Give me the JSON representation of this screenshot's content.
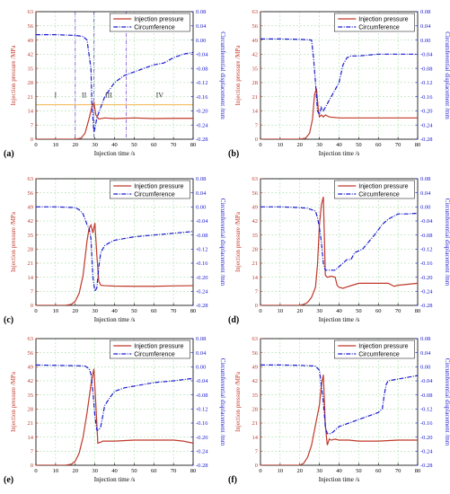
{
  "colors": {
    "pressure": "#c0392b",
    "circumference": "#1a1acd",
    "grid": "#9bd89b",
    "stage_line_pressure": "#f0a830",
    "stage_divider": "#7a4fd0",
    "left_axis": "#c0392b",
    "right_axis": "#1a1acd"
  },
  "chart_data": [
    {
      "label": "(a)",
      "type": "line",
      "xlabel": "Injection time /s",
      "ylabel": "Injection pressure /MPa",
      "y2label": "Circumferential displacement /mm",
      "xlim": [
        0,
        80
      ],
      "ylim": [
        0,
        63
      ],
      "y2lim": [
        -0.28,
        0.08
      ],
      "xticks": [
        "0",
        "10",
        "20",
        "30",
        "40",
        "50",
        "60",
        "70",
        "80"
      ],
      "yticks": [
        "0",
        "7",
        "14",
        "21",
        "28",
        "35",
        "42",
        "49",
        "56",
        "63"
      ],
      "y2ticks": [
        "-0.28",
        "-0.24",
        "-0.20",
        "-0.16",
        "-0.12",
        "-0.08",
        "-0.04",
        "0.00",
        "0.04",
        "0.08"
      ],
      "legend": [
        "Injection pressure",
        "Circumference"
      ],
      "legend_position": "top-right",
      "grid": true,
      "stage_dividers": [
        20,
        29.5,
        46
      ],
      "stage_level": 17,
      "stages": [
        {
          "label": "I",
          "x": 10
        },
        {
          "label": "II",
          "x": 24.5
        },
        {
          "label": "III",
          "x": 37
        },
        {
          "label": "IV",
          "x": 63
        }
      ],
      "series": [
        {
          "name": "Injection pressure",
          "x": [
            0,
            20,
            23,
            25,
            27,
            28.5,
            29.5,
            30.5,
            32,
            35,
            40,
            50,
            60,
            70,
            80
          ],
          "y": [
            0,
            0,
            0.5,
            3,
            10,
            16,
            18,
            12,
            10,
            10.5,
            10.2,
            10.5,
            10.2,
            10.3,
            10.3
          ]
        },
        {
          "name": "Circumference",
          "x": [
            0,
            10,
            20,
            24,
            26,
            28,
            28.5,
            29.5,
            30,
            31,
            33,
            35,
            40,
            45,
            50,
            55,
            60,
            65,
            70,
            75,
            80
          ],
          "y": [
            0.015,
            0.015,
            0.013,
            0.01,
            0.0,
            -0.08,
            -0.18,
            -0.26,
            -0.25,
            -0.22,
            -0.19,
            -0.16,
            -0.12,
            -0.1,
            -0.09,
            -0.08,
            -0.07,
            -0.065,
            -0.05,
            -0.04,
            -0.035
          ]
        }
      ]
    },
    {
      "label": "(b)",
      "type": "line",
      "xlabel": "Injection time /s",
      "ylabel": "Injection pressure /MPa",
      "y2label": "Circumferential displacement /mm",
      "xlim": [
        0,
        80
      ],
      "ylim": [
        0,
        63
      ],
      "y2lim": [
        -0.28,
        0.08
      ],
      "xticks": [
        "0",
        "10",
        "20",
        "30",
        "40",
        "50",
        "60",
        "70",
        "80"
      ],
      "yticks": [
        "0",
        "7",
        "14",
        "21",
        "28",
        "35",
        "42",
        "49",
        "56",
        "63"
      ],
      "y2ticks": [
        "-0.28",
        "-0.24",
        "-0.20",
        "-0.16",
        "-0.12",
        "-0.08",
        "-0.04",
        "0.00",
        "0.04",
        "0.08"
      ],
      "legend": [
        "Injection pressure",
        "Circumference"
      ],
      "legend_position": "top-right",
      "grid": true,
      "series": [
        {
          "name": "Injection pressure",
          "x": [
            0,
            20,
            23,
            25,
            26.5,
            27.5,
            28.5,
            29.5,
            30,
            31,
            32,
            33,
            35,
            40,
            50,
            60,
            70,
            80
          ],
          "y": [
            0,
            0,
            0.5,
            3,
            10,
            22,
            25,
            14,
            11,
            12,
            11,
            12,
            11,
            10.5,
            10.5,
            10.5,
            10.5,
            10.5
          ]
        },
        {
          "name": "Circumference",
          "x": [
            0,
            10,
            20,
            26,
            27,
            28,
            29,
            30,
            31,
            32,
            33,
            35,
            38,
            40,
            42,
            44,
            46,
            50,
            60,
            70,
            80
          ],
          "y": [
            0.003,
            0.003,
            0.002,
            0.0,
            -0.05,
            -0.12,
            -0.2,
            -0.21,
            -0.19,
            -0.2,
            -0.19,
            -0.17,
            -0.14,
            -0.12,
            -0.07,
            -0.05,
            -0.045,
            -0.045,
            -0.04,
            -0.04,
            -0.04
          ]
        }
      ]
    },
    {
      "label": "(c)",
      "type": "line",
      "xlabel": "Injection time /s",
      "ylabel": "Injection pressure /MPa",
      "y2label": "Circumferential displacement /mm",
      "xlim": [
        0,
        80
      ],
      "ylim": [
        0,
        63
      ],
      "y2lim": [
        -0.28,
        0.08
      ],
      "xticks": [
        "0",
        "10",
        "20",
        "30",
        "40",
        "50",
        "60",
        "70",
        "80"
      ],
      "yticks": [
        "0",
        "7",
        "14",
        "21",
        "28",
        "35",
        "42",
        "49",
        "56",
        "63"
      ],
      "y2ticks": [
        "-0.28",
        "-0.24",
        "-0.20",
        "-0.16",
        "-0.12",
        "-0.08",
        "-0.04",
        "0.00",
        "0.04",
        "0.08"
      ],
      "legend": [
        "Injection pressure",
        "Circumference"
      ],
      "legend_position": "top-right",
      "grid": true,
      "series": [
        {
          "name": "Injection pressure",
          "x": [
            0,
            15,
            18,
            20,
            22,
            24,
            26,
            27,
            28,
            29,
            30,
            31,
            32,
            33,
            35,
            40,
            50,
            60,
            70,
            80
          ],
          "y": [
            0,
            0,
            0.5,
            2,
            6,
            15,
            32,
            38,
            40,
            36,
            41,
            25,
            12,
            10,
            9.8,
            9.6,
            9.5,
            9.5,
            9.7,
            9.8
          ]
        },
        {
          "name": "Circumference",
          "x": [
            0,
            10,
            20,
            22,
            24,
            26,
            27,
            28,
            29,
            30,
            31,
            32,
            33,
            35,
            38,
            40,
            45,
            50,
            60,
            70,
            80
          ],
          "y": [
            0.0,
            0.0,
            -0.002,
            -0.008,
            -0.02,
            -0.05,
            -0.06,
            -0.09,
            -0.2,
            -0.24,
            -0.23,
            -0.17,
            -0.13,
            -0.11,
            -0.1,
            -0.095,
            -0.09,
            -0.085,
            -0.08,
            -0.075,
            -0.07
          ]
        }
      ]
    },
    {
      "label": "(d)",
      "type": "line",
      "xlabel": "Injection time /s",
      "ylabel": "Injection pressure /MPa",
      "y2label": "Circumferential displacement /mm",
      "xlim": [
        0,
        80
      ],
      "ylim": [
        0,
        63
      ],
      "y2lim": [
        -0.28,
        0.08
      ],
      "xticks": [
        "0",
        "10",
        "20",
        "30",
        "40",
        "50",
        "60",
        "70",
        "80"
      ],
      "yticks": [
        "0",
        "7",
        "14",
        "21",
        "28",
        "35",
        "42",
        "49",
        "56",
        "63"
      ],
      "y2ticks": [
        "-0.28",
        "-0.24",
        "-0.20",
        "-0.16",
        "-0.12",
        "-0.08",
        "-0.04",
        "0.00",
        "0.04",
        "0.08"
      ],
      "legend": [
        "Injection pressure",
        "Circumference"
      ],
      "legend_position": "top-right",
      "grid": true,
      "series": [
        {
          "name": "Injection pressure",
          "x": [
            0,
            20,
            22,
            24,
            26,
            28,
            29,
            30,
            31,
            32,
            33,
            34,
            36,
            38,
            39,
            40,
            42,
            45,
            50,
            55,
            60,
            65,
            68,
            70,
            75,
            80
          ],
          "y": [
            0,
            0,
            0.5,
            1.5,
            4,
            9,
            20,
            40,
            50,
            54,
            15,
            14,
            14.5,
            14,
            10,
            9,
            8.5,
            9.5,
            11,
            11,
            11,
            11,
            9.5,
            10,
            10.5,
            11
          ]
        },
        {
          "name": "Circumference",
          "x": [
            0,
            10,
            20,
            24,
            26,
            28,
            29,
            30,
            31,
            32,
            33,
            35,
            38,
            40,
            42,
            44,
            46,
            48,
            52,
            55,
            58,
            62,
            65,
            70,
            75,
            80
          ],
          "y": [
            0.0,
            0.0,
            -0.002,
            -0.004,
            -0.008,
            -0.012,
            -0.03,
            -0.06,
            -0.1,
            -0.16,
            -0.18,
            -0.18,
            -0.18,
            -0.17,
            -0.16,
            -0.15,
            -0.15,
            -0.13,
            -0.12,
            -0.1,
            -0.08,
            -0.05,
            -0.035,
            -0.02,
            -0.02,
            -0.018
          ]
        }
      ]
    },
    {
      "label": "(e)",
      "type": "line",
      "xlabel": "Injection time /s",
      "ylabel": "Injection pressure /MPa",
      "y2label": "Circumferential displacement /mm",
      "xlim": [
        0,
        80
      ],
      "ylim": [
        0,
        63
      ],
      "y2lim": [
        -0.28,
        0.08
      ],
      "xticks": [
        "0",
        "10",
        "20",
        "30",
        "40",
        "50",
        "60",
        "70",
        "80"
      ],
      "yticks": [
        "0",
        "7",
        "14",
        "21",
        "28",
        "35",
        "42",
        "49",
        "56",
        "63"
      ],
      "y2ticks": [
        "-0.28",
        "-0.24",
        "-0.20",
        "-0.16",
        "-0.12",
        "-0.08",
        "-0.04",
        "0.00",
        "0.04",
        "0.08"
      ],
      "legend": [
        "Injection pressure",
        "Circumference"
      ],
      "legend_position": "top-right",
      "grid": true,
      "series": [
        {
          "name": "Injection pressure",
          "x": [
            0,
            15,
            18,
            20,
            22,
            24,
            26,
            28,
            29.5,
            30.5,
            31.5,
            33,
            34,
            35,
            40,
            50,
            60,
            70,
            75,
            80
          ],
          "y": [
            0,
            0,
            0.5,
            2,
            6,
            14,
            26,
            40,
            48,
            30,
            11,
            11.5,
            12,
            12,
            12,
            12.5,
            12.5,
            12.5,
            12,
            11
          ]
        },
        {
          "name": "Circumference",
          "x": [
            0,
            10,
            20,
            25,
            27,
            28,
            29,
            30,
            31,
            32,
            33,
            34,
            35,
            38,
            40,
            45,
            50,
            60,
            70,
            80
          ],
          "y": [
            0.005,
            0.004,
            0.003,
            0.002,
            -0.005,
            -0.02,
            -0.07,
            -0.14,
            -0.18,
            -0.18,
            -0.17,
            -0.14,
            -0.11,
            -0.085,
            -0.07,
            -0.06,
            -0.055,
            -0.045,
            -0.04,
            -0.033
          ]
        }
      ]
    },
    {
      "label": "(f)",
      "type": "line",
      "xlabel": "Injection time /s",
      "ylabel": "Injection pressure /MPa",
      "y2label": "Circumferential displacement /mm",
      "xlim": [
        0,
        80
      ],
      "ylim": [
        0,
        63
      ],
      "y2lim": [
        -0.28,
        0.08
      ],
      "xticks": [
        "0",
        "10",
        "20",
        "30",
        "40",
        "50",
        "60",
        "70",
        "80"
      ],
      "yticks": [
        "0",
        "7",
        "14",
        "21",
        "28",
        "35",
        "42",
        "49",
        "56",
        "63"
      ],
      "y2ticks": [
        "-0.28",
        "-0.24",
        "-0.20",
        "-0.16",
        "-0.12",
        "-0.08",
        "-0.04",
        "0.00",
        "0.04",
        "0.08"
      ],
      "legend": [
        "Injection pressure",
        "Circumference"
      ],
      "legend_position": "top-right",
      "grid": true,
      "series": [
        {
          "name": "Injection pressure",
          "x": [
            0,
            20,
            22,
            24,
            26,
            28,
            30,
            31,
            32,
            33,
            34,
            35,
            36,
            38,
            40,
            45,
            50,
            60,
            70,
            80
          ],
          "y": [
            0,
            0,
            1,
            4,
            10,
            20,
            30,
            40,
            45,
            20,
            10,
            13,
            12.5,
            13,
            12.5,
            12.5,
            12,
            12,
            12.5,
            12.5
          ]
        },
        {
          "name": "Circumference",
          "x": [
            0,
            10,
            20,
            28,
            30,
            32,
            33,
            34,
            35,
            36,
            38,
            40,
            45,
            50,
            55,
            60,
            62,
            63,
            64,
            65,
            70,
            75,
            80
          ],
          "y": [
            0.005,
            0.005,
            0.004,
            0.002,
            -0.01,
            -0.1,
            -0.17,
            -0.19,
            -0.19,
            -0.19,
            -0.18,
            -0.17,
            -0.16,
            -0.15,
            -0.14,
            -0.13,
            -0.12,
            -0.08,
            -0.05,
            -0.04,
            -0.035,
            -0.03,
            -0.025
          ]
        }
      ]
    }
  ]
}
